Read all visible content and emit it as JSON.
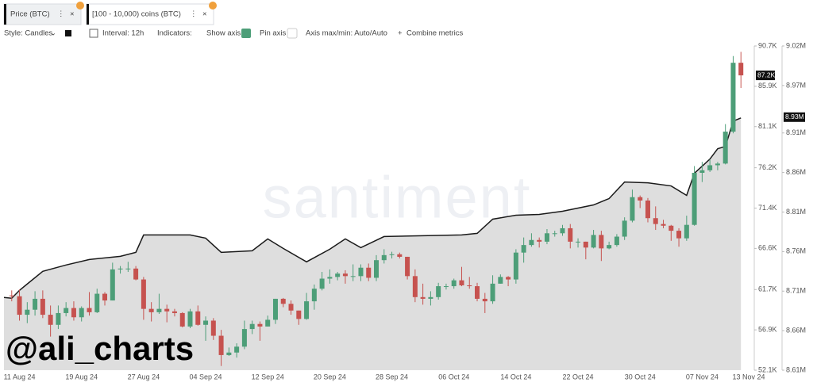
{
  "tabs": [
    {
      "label": "Price (BTC)"
    },
    {
      "label": "[100 - 10,000) coins (BTC)"
    }
  ],
  "toolbar": {
    "style": "Style: Candles",
    "interval": "Interval: 12h",
    "indicators": "Indicators:",
    "show_axis": "Show axis",
    "pin_axis": "Pin axis",
    "axis_minmax": "Axis max/min: Auto/Auto",
    "combine": "Combine metrics"
  },
  "chart_data": {
    "type": "candlestick",
    "watermark": "santiment",
    "overlay_text": "@ali_charts",
    "xlim": [
      "2024-08-09",
      "2024-11-13"
    ],
    "xticks": [
      {
        "value": "2024-08-11",
        "label": "11 Aug 24"
      },
      {
        "value": "2024-08-19",
        "label": "19 Aug 24"
      },
      {
        "value": "2024-08-27",
        "label": "27 Aug 24"
      },
      {
        "value": "2024-09-04",
        "label": "04 Sep 24"
      },
      {
        "value": "2024-09-12",
        "label": "12 Sep 24"
      },
      {
        "value": "2024-09-20",
        "label": "20 Sep 24"
      },
      {
        "value": "2024-09-28",
        "label": "28 Sep 24"
      },
      {
        "value": "2024-10-06",
        "label": "06 Oct 24"
      },
      {
        "value": "2024-10-14",
        "label": "14 Oct 24"
      },
      {
        "value": "2024-10-22",
        "label": "22 Oct 24"
      },
      {
        "value": "2024-10-30",
        "label": "30 Oct 24"
      },
      {
        "value": "2024-11-07",
        "label": "07 Nov 24"
      },
      {
        "value": "2024-11-13",
        "label": "13 Nov 24"
      }
    ],
    "ylim": [
      52100,
      90700
    ],
    "yticks": [
      {
        "value": 90700,
        "label": "90.7K"
      },
      {
        "value": 85900,
        "label": "85.9K"
      },
      {
        "value": 81100,
        "label": "81.1K"
      },
      {
        "value": 76200,
        "label": "76.2K"
      },
      {
        "value": 71400,
        "label": "71.4K"
      },
      {
        "value": 66600,
        "label": "66.6K"
      },
      {
        "value": 61700,
        "label": "61.7K"
      },
      {
        "value": 56900,
        "label": "56.9K"
      },
      {
        "value": 52100,
        "label": "52.1K"
      }
    ],
    "y2lim": [
      8610000,
      9020000
    ],
    "y2ticks": [
      {
        "value": 9020000,
        "label": "9.02M"
      },
      {
        "value": 8970000,
        "label": "8.97M"
      },
      {
        "value": 8910000,
        "label": "8.91M"
      },
      {
        "value": 8860000,
        "label": "8.86M"
      },
      {
        "value": 8810000,
        "label": "8.81M"
      },
      {
        "value": 8760000,
        "label": "8.76M"
      },
      {
        "value": 8710000,
        "label": "8.71M"
      },
      {
        "value": 8660000,
        "label": "8.66M"
      },
      {
        "value": 8610000,
        "label": "8.61M"
      }
    ],
    "up_color": "#4d9e78",
    "down_color": "#c6524f",
    "last_value": {
      "value": 87200,
      "label": "87.2K"
    },
    "x": [
      "2024-08-10",
      "2024-08-11",
      "2024-08-12",
      "2024-08-13",
      "2024-08-14",
      "2024-08-15",
      "2024-08-16",
      "2024-08-17",
      "2024-08-18",
      "2024-08-19",
      "2024-08-20",
      "2024-08-21",
      "2024-08-22",
      "2024-08-23",
      "2024-08-24",
      "2024-08-25",
      "2024-08-26",
      "2024-08-27",
      "2024-08-28",
      "2024-08-29",
      "2024-08-30",
      "2024-08-31",
      "2024-09-01",
      "2024-09-02",
      "2024-09-03",
      "2024-09-04",
      "2024-09-05",
      "2024-09-06",
      "2024-09-07",
      "2024-09-08",
      "2024-09-09",
      "2024-09-10",
      "2024-09-11",
      "2024-09-12",
      "2024-09-13",
      "2024-09-14",
      "2024-09-15",
      "2024-09-16",
      "2024-09-17",
      "2024-09-18",
      "2024-09-19",
      "2024-09-20",
      "2024-09-21",
      "2024-09-22",
      "2024-09-23",
      "2024-09-24",
      "2024-09-25",
      "2024-09-26",
      "2024-09-27",
      "2024-09-28",
      "2024-09-29",
      "2024-09-30",
      "2024-10-01",
      "2024-10-02",
      "2024-10-03",
      "2024-10-04",
      "2024-10-05",
      "2024-10-06",
      "2024-10-07",
      "2024-10-08",
      "2024-10-09",
      "2024-10-10",
      "2024-10-11",
      "2024-10-12",
      "2024-10-13",
      "2024-10-14",
      "2024-10-15",
      "2024-10-16",
      "2024-10-17",
      "2024-10-18",
      "2024-10-19",
      "2024-10-20",
      "2024-10-21",
      "2024-10-22",
      "2024-10-23",
      "2024-10-24",
      "2024-10-25",
      "2024-10-26",
      "2024-10-27",
      "2024-10-28",
      "2024-10-29",
      "2024-10-30",
      "2024-10-31",
      "2024-11-01",
      "2024-11-02",
      "2024-11-03",
      "2024-11-04",
      "2024-11-05",
      "2024-11-06",
      "2024-11-07",
      "2024-11-08",
      "2024-11-09",
      "2024-11-10",
      "2024-11-11",
      "2024-11-12"
    ],
    "open": [
      61000,
      60900,
      58700,
      59300,
      60600,
      58700,
      57500,
      58900,
      59500,
      58400,
      59500,
      59000,
      61200,
      60400,
      64100,
      64200,
      64200,
      62900,
      59400,
      59000,
      59400,
      59100,
      58900,
      57300,
      59100,
      57500,
      58000,
      56200,
      53900,
      54200,
      54900,
      57000,
      57600,
      57300,
      58100,
      60600,
      60000,
      59200,
      58200,
      60300,
      61800,
      63000,
      63200,
      63600,
      63300,
      63300,
      64300,
      63100,
      65200,
      65800,
      65900,
      65600,
      63300,
      60800,
      60600,
      60800,
      62100,
      62100,
      62800,
      62200,
      62100,
      60600,
      60300,
      62400,
      63200,
      62900,
      66100,
      67000,
      67600,
      67400,
      68400,
      68400,
      69000,
      67400,
      67400,
      66700,
      68200,
      66600,
      67000,
      68000,
      69900,
      72700,
      72300,
      70200,
      69500,
      69300,
      68700,
      67800,
      69400,
      75600,
      75900,
      76500,
      76700,
      80500,
      88700
    ],
    "high": [
      61600,
      61700,
      60200,
      61500,
      61600,
      59800,
      59800,
      60200,
      60300,
      59700,
      61400,
      61800,
      61400,
      64900,
      64500,
      65000,
      64500,
      63200,
      60200,
      61200,
      59900,
      59400,
      59000,
      59400,
      59800,
      58500,
      58300,
      56900,
      54800,
      55300,
      58000,
      58000,
      57900,
      58600,
      60600,
      60700,
      60400,
      59200,
      61300,
      62300,
      63800,
      64100,
      63800,
      64000,
      64700,
      64700,
      64800,
      65800,
      66500,
      66200,
      66100,
      65600,
      64100,
      62400,
      61500,
      62500,
      62400,
      63000,
      64400,
      63200,
      62500,
      61300,
      63400,
      63500,
      63300,
      66500,
      67900,
      68400,
      67900,
      68900,
      68700,
      69400,
      69500,
      67800,
      67400,
      68800,
      68700,
      67400,
      68300,
      70300,
      73600,
      72900,
      72600,
      71600,
      70000,
      69400,
      69000,
      70500,
      76400,
      76900,
      77200,
      76900,
      81400,
      89500,
      90000
    ],
    "low": [
      60300,
      58000,
      57700,
      58600,
      58300,
      56100,
      57000,
      58500,
      58000,
      57900,
      58600,
      58900,
      59800,
      60400,
      63600,
      63800,
      62800,
      58100,
      57900,
      58800,
      57800,
      58500,
      57200,
      57100,
      57400,
      55600,
      55700,
      52600,
      53800,
      53600,
      54600,
      56400,
      55600,
      57300,
      57600,
      59600,
      58700,
      57500,
      58100,
      59300,
      61600,
      62400,
      62800,
      62400,
      62700,
      62700,
      62700,
      62700,
      64800,
      65400,
      65400,
      62900,
      60200,
      59900,
      59800,
      60500,
      61700,
      61800,
      62100,
      61800,
      60300,
      58900,
      60000,
      62400,
      62100,
      62400,
      64900,
      66800,
      66700,
      67100,
      68000,
      68100,
      66600,
      66700,
      65300,
      66600,
      65100,
      66500,
      66800,
      67600,
      69700,
      71400,
      69700,
      68800,
      69000,
      67500,
      66800,
      67500,
      69300,
      74500,
      75700,
      75900,
      76600,
      80300,
      85700
    ],
    "close": [
      60900,
      58700,
      59300,
      60600,
      58700,
      57500,
      58900,
      59500,
      58400,
      59500,
      59000,
      61200,
      60400,
      64100,
      64200,
      64200,
      62900,
      59400,
      59000,
      59400,
      59100,
      58900,
      57300,
      59100,
      57500,
      58000,
      56200,
      53900,
      54200,
      54900,
      57000,
      57600,
      57300,
      58100,
      60600,
      60000,
      59200,
      58200,
      60300,
      61800,
      63000,
      63200,
      63600,
      63300,
      63300,
      64300,
      63100,
      65200,
      65800,
      65900,
      65600,
      63300,
      60800,
      60600,
      60800,
      62100,
      62100,
      62800,
      62200,
      62100,
      60600,
      60300,
      62400,
      63200,
      62900,
      66100,
      67000,
      67600,
      67400,
      68400,
      68400,
      69000,
      67400,
      67400,
      66700,
      68200,
      66600,
      67000,
      68000,
      69900,
      72700,
      72300,
      70200,
      69500,
      69300,
      68700,
      67800,
      69400,
      75600,
      75900,
      76500,
      76700,
      80500,
      88700,
      87200
    ],
    "area": {
      "type": "area",
      "axis": "y2",
      "color": "#1a1a1a",
      "fill": "#dedede",
      "last_value": {
        "value": 8930000,
        "label": "8.93M"
      },
      "x": [
        "2024-08-09",
        "2024-08-10",
        "2024-08-11",
        "2024-08-12",
        "2024-08-14",
        "2024-08-17",
        "2024-08-20",
        "2024-08-24",
        "2024-08-26",
        "2024-08-27",
        "2024-08-31",
        "2024-09-02",
        "2024-09-04",
        "2024-09-06",
        "2024-09-10",
        "2024-09-12",
        "2024-09-14",
        "2024-09-17",
        "2024-09-20",
        "2024-09-22",
        "2024-09-24",
        "2024-09-27",
        "2024-10-02",
        "2024-10-07",
        "2024-10-09",
        "2024-10-11",
        "2024-10-14",
        "2024-10-17",
        "2024-10-20",
        "2024-10-24",
        "2024-10-26",
        "2024-10-28",
        "2024-10-31",
        "2024-11-03",
        "2024-11-05",
        "2024-11-06",
        "2024-11-08",
        "2024-11-09",
        "2024-11-10",
        "2024-11-11",
        "2024-11-12"
      ],
      "values": [
        8702000,
        8701000,
        8711000,
        8719000,
        8735000,
        8743000,
        8750000,
        8754000,
        8759000,
        8781000,
        8781000,
        8781000,
        8777000,
        8759000,
        8761000,
        8776000,
        8764000,
        8747000,
        8763000,
        8776000,
        8765000,
        8779000,
        8780000,
        8781000,
        8783000,
        8801000,
        8806000,
        8807000,
        8811000,
        8819000,
        8827000,
        8848000,
        8847000,
        8843000,
        8831000,
        8859000,
        8877000,
        8890000,
        8893000,
        8925000,
        8929000
      ]
    }
  }
}
